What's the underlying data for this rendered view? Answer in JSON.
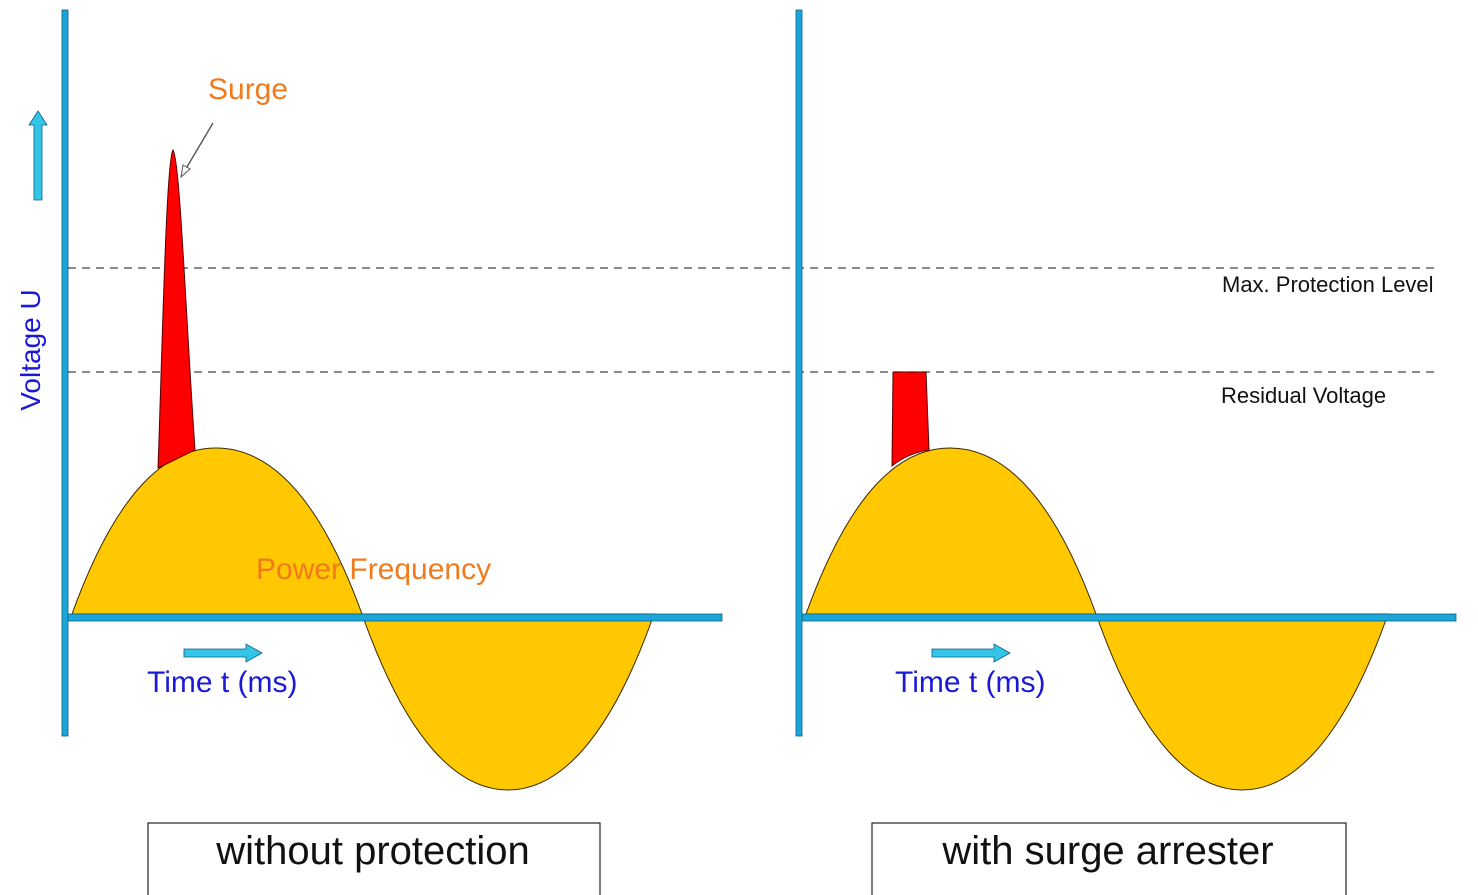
{
  "colors": {
    "axis": "#1ba6d9",
    "arrow_fill": "#33c4e8",
    "wave": "#ffc800",
    "wave_stroke": "#3a2a00",
    "surge": "#ff0000",
    "label_orange": "#f07a1e",
    "label_blue": "#1a1ad6",
    "dash": "#444444",
    "text_black": "#111111"
  },
  "left_panel": {
    "y_axis_label": "Voltage U",
    "surge_label": "Surge",
    "wave_label": "Power Frequency",
    "x_axis_label": "Time t (ms)",
    "caption": "without protection"
  },
  "right_panel": {
    "x_axis_label": "Time t (ms)",
    "caption": "with surge arrester"
  },
  "levels": {
    "max_protection_label": "Max. Protection Level",
    "residual_label": "Residual Voltage"
  },
  "icons": [
    "up-arrow-icon",
    "right-arrow-icon"
  ]
}
